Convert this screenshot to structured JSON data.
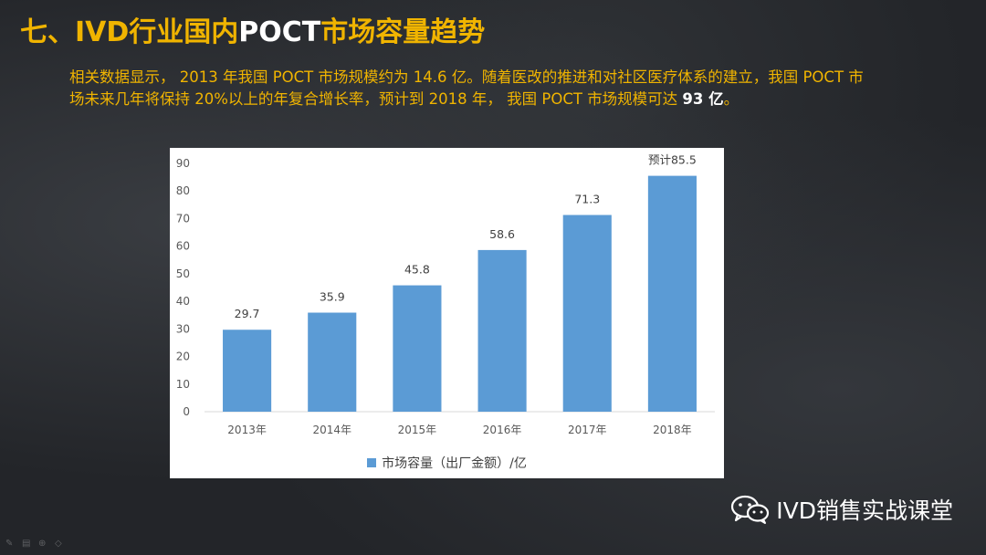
{
  "slide": {
    "title_part1": "七、IVD行业国内",
    "title_part2": "POCT",
    "title_part3": "市场容量趋势",
    "desc_main": "相关数据显示， 2013 年我国 POCT 市场规模约为 14.6 亿。随着医改的推进和对社区医疗体系的建立，我国 POCT 市场未来几年将保持 20%以上的年复合增长率，预计到 2018 年， 我国 POCT 市场规模可达 ",
    "desc_bold": "93 亿",
    "desc_end": "。"
  },
  "chart_data": {
    "type": "bar",
    "categories": [
      "2013年",
      "2014年",
      "2015年",
      "2016年",
      "2017年",
      "2018年"
    ],
    "series": [
      {
        "name": "市场容量（出厂金额）/亿",
        "values": [
          29.7,
          35.9,
          45.8,
          58.6,
          71.3,
          85.5
        ],
        "labels": [
          "29.7",
          "35.9",
          "45.8",
          "58.6",
          "71.3",
          "预计85.5"
        ]
      }
    ],
    "ylim": [
      0,
      90
    ],
    "yticks": [
      "0",
      "10",
      "20",
      "30",
      "40",
      "50",
      "60",
      "70",
      "80",
      "90"
    ],
    "grid": false,
    "legend": "bottom",
    "bar_color": "#5b9bd5"
  },
  "brand": {
    "label": "IVD销售实战课堂",
    "icon": "wechat-icon"
  },
  "colors": {
    "title_accent": "#f0b400",
    "text_white": "#ffffff"
  }
}
